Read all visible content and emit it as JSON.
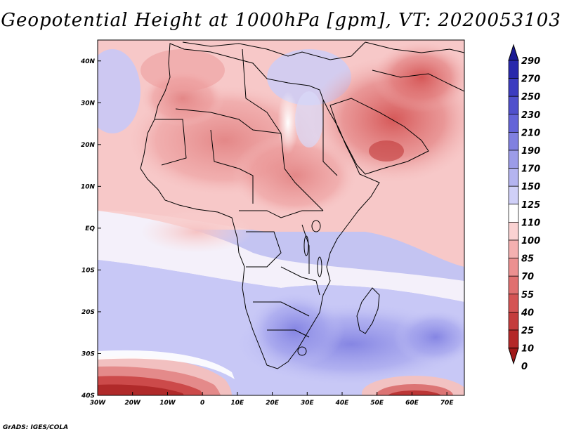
{
  "title": "Geopotential Height at 1000hPa [gpm], VT: 2020053103",
  "credit": "GrADS: IGES/COLA",
  "map": {
    "lon_range": [
      -30,
      75
    ],
    "lat_range": [
      -40,
      45
    ],
    "lon_ticks": [
      {
        "value": -30,
        "label": "30W"
      },
      {
        "value": -20,
        "label": "20W"
      },
      {
        "value": -10,
        "label": "10W"
      },
      {
        "value": 0,
        "label": "0"
      },
      {
        "value": 10,
        "label": "10E"
      },
      {
        "value": 20,
        "label": "20E"
      },
      {
        "value": 30,
        "label": "30E"
      },
      {
        "value": 40,
        "label": "40E"
      },
      {
        "value": 50,
        "label": "50E"
      },
      {
        "value": 60,
        "label": "60E"
      },
      {
        "value": 70,
        "label": "70E"
      }
    ],
    "lat_ticks": [
      {
        "value": 40,
        "label": "40N"
      },
      {
        "value": 30,
        "label": "30N"
      },
      {
        "value": 20,
        "label": "20N"
      },
      {
        "value": 10,
        "label": "10N"
      },
      {
        "value": 0,
        "label": "EQ"
      },
      {
        "value": -10,
        "label": "10S"
      },
      {
        "value": -20,
        "label": "20S"
      },
      {
        "value": -30,
        "label": "30S"
      },
      {
        "value": -40,
        "label": "40S"
      }
    ]
  },
  "colorbar": {
    "labels": [
      "290",
      "270",
      "250",
      "230",
      "210",
      "190",
      "170",
      "150",
      "125",
      "110",
      "100",
      "85",
      "70",
      "55",
      "40",
      "25",
      "10",
      "0"
    ],
    "colors": [
      "#1a1a94",
      "#2828ac",
      "#3c3cc0",
      "#5050cc",
      "#6464d8",
      "#8080e0",
      "#9c9ce8",
      "#b4b4f0",
      "#d0d0f8",
      "#ffffff",
      "#fad2d2",
      "#f4b0b0",
      "#ec9090",
      "#e07070",
      "#d45454",
      "#c43c3c",
      "#b42828",
      "#a01818"
    ]
  }
}
